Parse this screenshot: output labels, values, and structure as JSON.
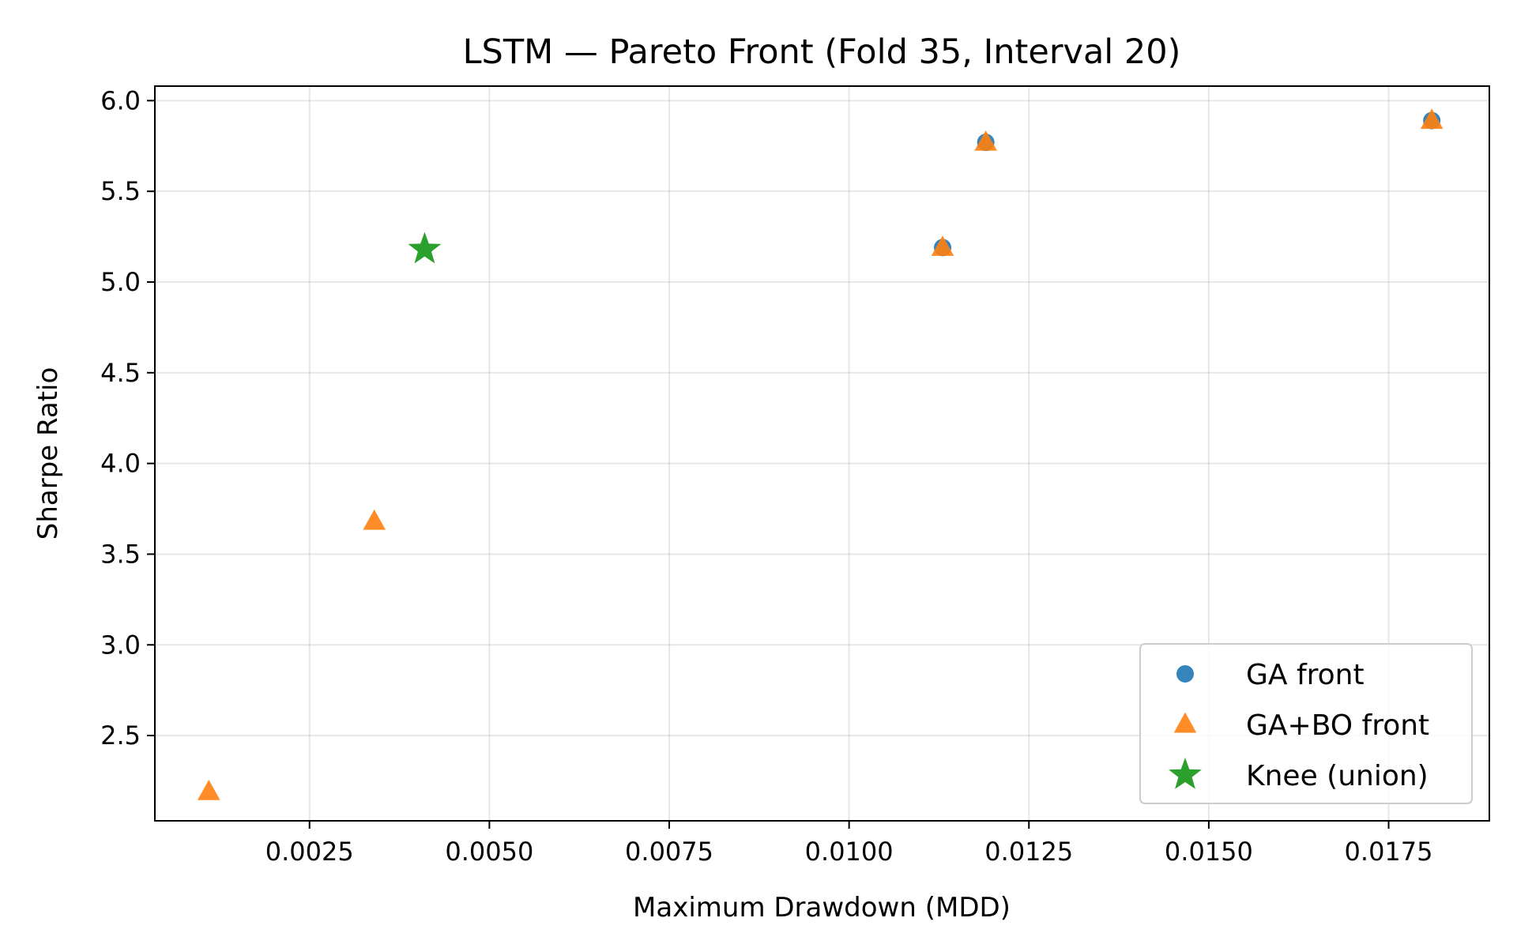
{
  "chart_data": {
    "type": "scatter",
    "title": "LSTM — Pareto Front (Fold 35, Interval 20)",
    "xlabel": "Maximum Drawdown (MDD)",
    "ylabel": "Sharpe Ratio",
    "xlim": [
      0.00035,
      0.0189
    ],
    "ylim": [
      2.03,
      6.08
    ],
    "xticks": [
      0.0025,
      0.005,
      0.0075,
      0.01,
      0.0125,
      0.015,
      0.0175
    ],
    "xtick_labels": [
      "0.0025",
      "0.0050",
      "0.0075",
      "0.0100",
      "0.0125",
      "0.0150",
      "0.0175"
    ],
    "yticks": [
      2.5,
      3.0,
      3.5,
      4.0,
      4.5,
      5.0,
      5.5,
      6.0
    ],
    "ytick_labels": [
      "2.5",
      "3.0",
      "3.5",
      "4.0",
      "4.5",
      "5.0",
      "5.5",
      "6.0"
    ],
    "grid": true,
    "legend_position": "lower-right",
    "series": [
      {
        "name": "GA front",
        "marker": "circle",
        "color": "#1f77b4",
        "points": [
          {
            "x": 0.0113,
            "y": 5.19
          },
          {
            "x": 0.0119,
            "y": 5.77
          },
          {
            "x": 0.0181,
            "y": 5.89
          }
        ]
      },
      {
        "name": "GA+BO front",
        "marker": "triangle",
        "color": "#ff7f0e",
        "points": [
          {
            "x": 0.0011,
            "y": 2.19
          },
          {
            "x": 0.0034,
            "y": 3.68
          },
          {
            "x": 0.0113,
            "y": 5.19
          },
          {
            "x": 0.0119,
            "y": 5.77
          },
          {
            "x": 0.0181,
            "y": 5.89
          }
        ]
      },
      {
        "name": "Knee (union)",
        "marker": "star",
        "color": "#2ca02c",
        "points": [
          {
            "x": 0.0041,
            "y": 5.18
          }
        ]
      }
    ]
  }
}
